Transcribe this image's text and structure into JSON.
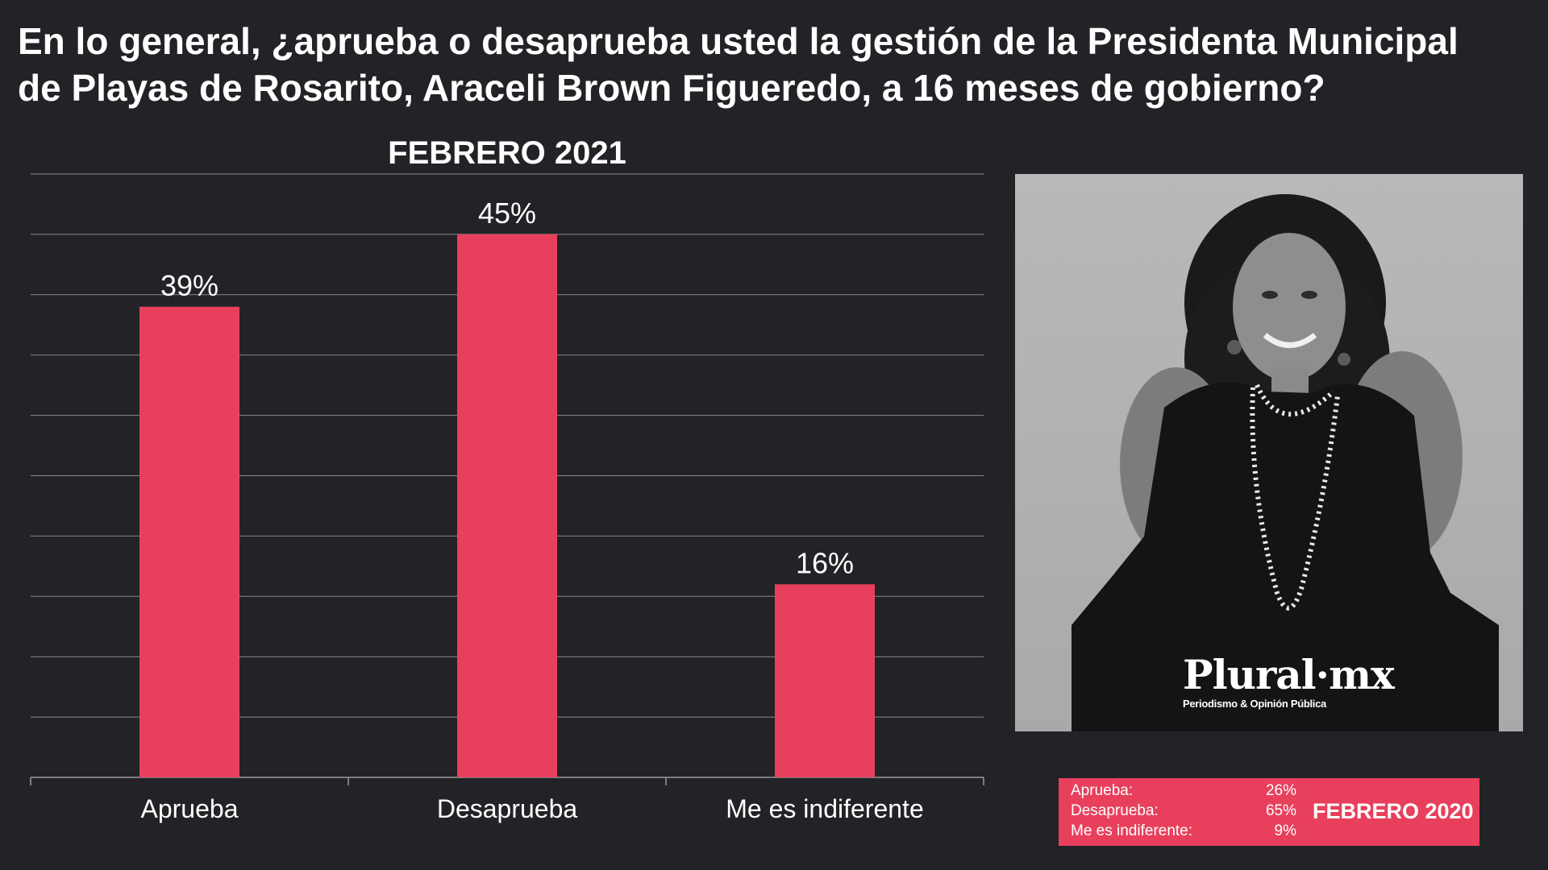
{
  "headline": {
    "line1": "En lo general, ¿aprueba o desaprueba usted la gestión de la Presidenta Municipal",
    "line2": "de Playas de Rosarito, Araceli Brown Figueredo, a 16 meses de gobierno?"
  },
  "chart_data": {
    "type": "bar",
    "title": "FEBRERO 2021",
    "categories": [
      "Aprueba",
      "Desaprueba",
      "Me es indiferente"
    ],
    "values": [
      39,
      45,
      16
    ],
    "value_labels": [
      "39%",
      "45%",
      "16%"
    ],
    "ylim": [
      0,
      50
    ],
    "grid": true,
    "bar_color": "#e8405c",
    "background": "#232327"
  },
  "photo": {
    "logo_text": "Plural·mx",
    "logo_tagline": "Periodismo & Opinión Pública"
  },
  "previous": {
    "date": "FEBRERO 2020",
    "rows": [
      {
        "label": "Aprueba:",
        "value": "26%"
      },
      {
        "label": "Desaprueba:",
        "value": "65%"
      },
      {
        "label": "Me es indiferente:",
        "value": "9%"
      }
    ]
  }
}
